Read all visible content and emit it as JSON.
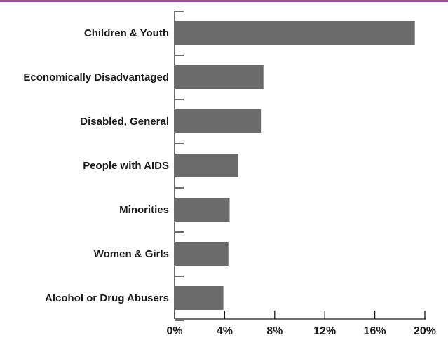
{
  "colors": {
    "accent": "#a0509a",
    "bar": "#6b6b6b",
    "axis": "#1a1a1a"
  },
  "chart_data": {
    "type": "bar",
    "orientation": "horizontal",
    "categories": [
      "Children & Youth",
      "Economically Disadvantaged",
      "Disabled, General",
      "People with AIDS",
      "Minorities",
      "Women & Girls",
      "Alcohol or Drug Abusers"
    ],
    "values": [
      19.2,
      7.1,
      6.9,
      5.1,
      4.4,
      4.3,
      3.9
    ],
    "unit": "%",
    "xlim": [
      0,
      20
    ],
    "x_ticks": [
      "0%",
      "4%",
      "8%",
      "12%",
      "16%",
      "20%"
    ],
    "grid": false,
    "title": "",
    "xlabel": "",
    "ylabel": ""
  }
}
